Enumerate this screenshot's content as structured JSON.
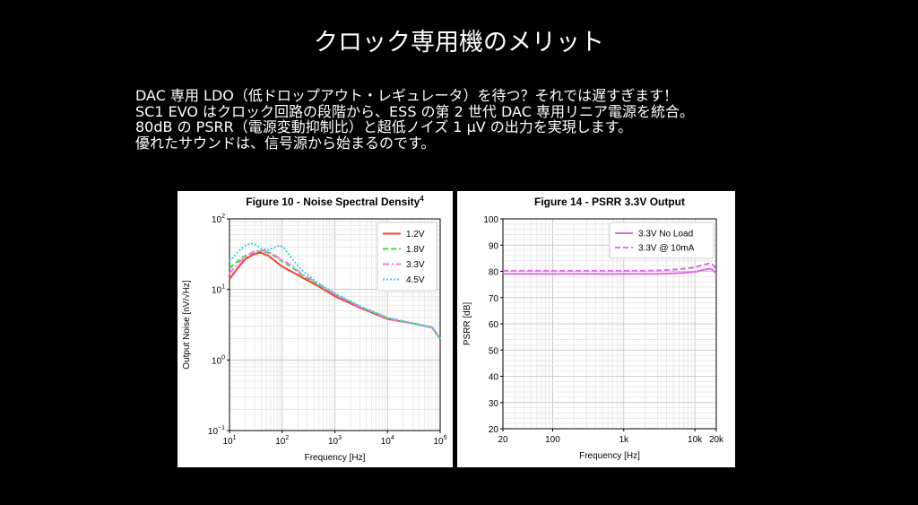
{
  "slide": {
    "title": "クロック専用機のメリット",
    "body_lines": [
      "DAC 専用 LDO（低ドロップアウト・レギュレータ）を待つ？それでは遅すぎます！",
      "SC1 EVO はクロック回路の段階から、ESS の第 2 世代 DAC 専用リニア電源を統合。",
      "80dB の PSRR（電源変動抑制比）と超低ノイズ 1 μV の出力を実現します。",
      "優れたサウンドは、信号源から始まるのです。"
    ]
  },
  "chart_data": [
    {
      "type": "line",
      "title": "Figure 10 - Noise Spectral Density",
      "title_superscript": "4",
      "xlabel": "Frequency [Hz]",
      "ylabel": "Output Noise [nV/√Hz]",
      "x_scale": "log",
      "y_scale": "log",
      "xlim": [
        10,
        100000
      ],
      "ylim": [
        0.1,
        100
      ],
      "x_ticks": [
        10,
        100,
        1000,
        10000,
        100000
      ],
      "x_tick_labels": [
        {
          "base": "10",
          "exp": "1"
        },
        {
          "base": "10",
          "exp": "2"
        },
        {
          "base": "10",
          "exp": "3"
        },
        {
          "base": "10",
          "exp": "4"
        },
        {
          "base": "10",
          "exp": "5"
        }
      ],
      "y_ticks": [
        0.1,
        1,
        10,
        100
      ],
      "y_tick_labels": [
        {
          "base": "10",
          "exp": "−1"
        },
        {
          "base": "10",
          "exp": "0"
        },
        {
          "base": "10",
          "exp": "1"
        },
        {
          "base": "10",
          "exp": "2"
        }
      ],
      "grid": true,
      "legend_position": "top-right",
      "series": [
        {
          "name": "1.2V",
          "color": "#ff3b3b",
          "dash": "solid",
          "x": [
            10,
            15,
            20,
            30,
            40,
            55,
            70,
            100,
            150,
            250,
            500,
            1000,
            3000,
            10000,
            30000,
            70000,
            100000
          ],
          "y": [
            14,
            21,
            27,
            32,
            33,
            30,
            26,
            21,
            18,
            14.5,
            11,
            8,
            5.5,
            3.8,
            3.3,
            2.9,
            2.0
          ]
        },
        {
          "name": "1.8V",
          "color": "#2ee82e",
          "dash": "dashed",
          "x": [
            10,
            15,
            20,
            30,
            40,
            55,
            70,
            100,
            150,
            250,
            500,
            1000,
            3000,
            10000,
            30000,
            70000,
            100000
          ],
          "y": [
            20,
            26,
            30,
            34,
            35,
            33,
            30,
            25,
            21,
            15.5,
            11.5,
            8.5,
            5.7,
            3.9,
            3.3,
            2.9,
            2.0
          ]
        },
        {
          "name": "3.3V",
          "color": "#ff6bff",
          "dash": "dashdot",
          "x": [
            10,
            15,
            20,
            30,
            40,
            55,
            70,
            100,
            150,
            250,
            500,
            1000,
            3000,
            10000,
            30000,
            70000,
            100000
          ],
          "y": [
            17,
            24,
            29,
            35,
            36,
            34,
            31,
            26,
            22,
            16,
            12,
            8.5,
            5.7,
            3.9,
            3.3,
            2.9,
            2.0
          ]
        },
        {
          "name": "4.5V",
          "color": "#33d6e0",
          "dash": "dotted",
          "x": [
            10,
            15,
            20,
            25,
            30,
            40,
            55,
            70,
            90,
            110,
            150,
            250,
            500,
            1000,
            3000,
            10000,
            30000,
            70000,
            100000
          ],
          "y": [
            25,
            35,
            42,
            45,
            44,
            38,
            36,
            39,
            42,
            38,
            28,
            18,
            12,
            8.8,
            5.8,
            4.0,
            3.3,
            2.9,
            2.0
          ]
        }
      ]
    },
    {
      "type": "line",
      "title": "Figure 14 - PSRR 3.3V Output",
      "xlabel": "Frequency [Hz]",
      "ylabel": "PSRR [dB]",
      "x_scale": "log",
      "xlim": [
        20,
        20000
      ],
      "ylim": [
        20,
        100
      ],
      "x_ticks": [
        20,
        100,
        1000,
        10000,
        20000
      ],
      "x_tick_labels": [
        "20",
        "100",
        "1k",
        "10k",
        "20k"
      ],
      "y_ticks": [
        20,
        30,
        40,
        50,
        60,
        70,
        80,
        90,
        100
      ],
      "y_tick_labels": [
        "20",
        "30",
        "40",
        "50",
        "60",
        "70",
        "80",
        "90",
        "100"
      ],
      "grid": true,
      "legend_position": "top-right",
      "series": [
        {
          "name": "3.3V No Load",
          "color": "#e36be3",
          "dash": "solid",
          "x": [
            20,
            100,
            1000,
            3000,
            6000,
            10000,
            13000,
            16000,
            18000,
            20000
          ],
          "y": [
            79,
            79,
            79,
            79,
            79.3,
            79.8,
            80.5,
            81,
            80.5,
            79
          ]
        },
        {
          "name": "3.3V @ 10mA",
          "color": "#e36be3",
          "dash": "dashed",
          "x": [
            20,
            100,
            1000,
            3000,
            6000,
            10000,
            13000,
            16000,
            18000,
            20000
          ],
          "y": [
            80.2,
            80.2,
            80.2,
            80.3,
            80.8,
            81.5,
            82.5,
            83,
            82.5,
            80.5
          ]
        }
      ]
    }
  ]
}
